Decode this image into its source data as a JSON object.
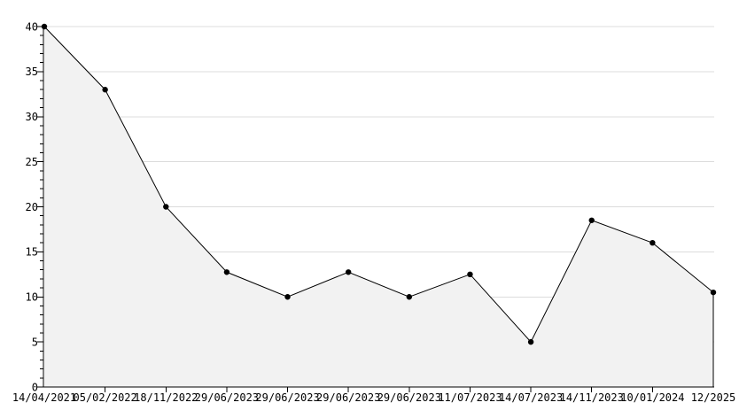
{
  "chart_data": {
    "type": "area",
    "title": "",
    "xlabel": "",
    "ylabel": "",
    "categories": [
      "14/04/2021",
      "05/02/2022",
      "18/11/2022",
      "29/06/2023",
      "29/06/2023",
      "29/06/2023",
      "29/06/2023",
      "11/07/2023",
      "14/07/2023",
      "14/11/2023",
      "10/01/2024",
      "12/2025"
    ],
    "values": [
      40,
      33,
      20,
      12.75,
      10,
      12.75,
      10,
      12.5,
      5,
      18.5,
      16,
      10.5
    ],
    "ylim": [
      0,
      40
    ],
    "y_major_ticks": [
      0,
      5,
      10,
      15,
      20,
      25,
      30,
      35,
      40
    ],
    "y_minor_tick_step": 1,
    "grid": true,
    "legend_position": "none",
    "colors": {
      "line": "#000000",
      "marker": "#000000",
      "fill": "#f2f2f2",
      "gridline": "#dcdcdc",
      "axis": "#000000",
      "text": "#000000",
      "background": "#ffffff"
    }
  }
}
